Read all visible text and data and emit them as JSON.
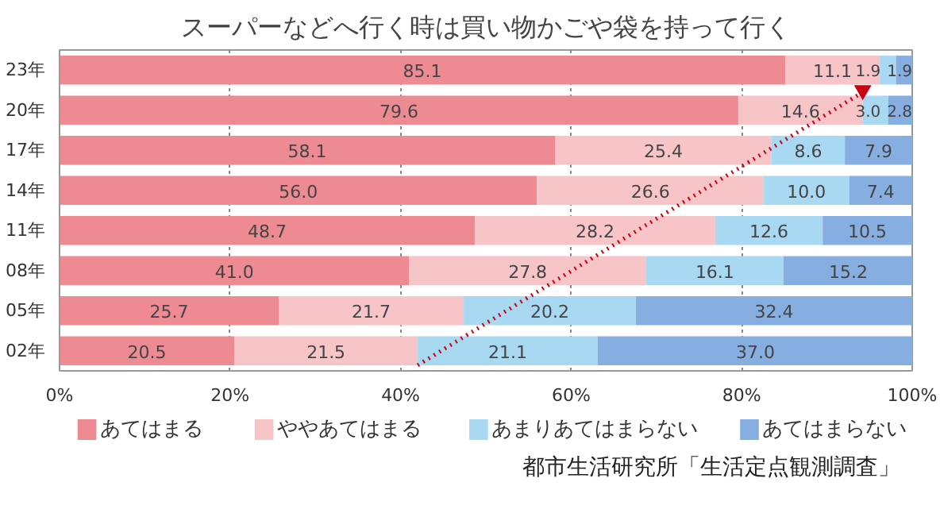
{
  "chart_data": {
    "type": "bar",
    "orientation": "horizontal",
    "stacked": true,
    "title": "スーパーなどへ行く時は買い物かごや袋を持って行く",
    "categories": [
      "23年",
      "20年",
      "17年",
      "14年",
      "11年",
      "08年",
      "05年",
      "02年"
    ],
    "series": [
      {
        "name": "あてはまる",
        "color": "#ee8a92",
        "values": [
          85.1,
          79.6,
          58.1,
          56.0,
          48.7,
          41.0,
          25.7,
          20.5
        ],
        "value_labels": [
          "85.1",
          "79.6",
          "58.1",
          "56.0",
          "48.7",
          "41.0",
          "25.7",
          "20.5"
        ]
      },
      {
        "name": "ややあてはまる",
        "color": "#f7c4c8",
        "values": [
          11.1,
          14.6,
          25.4,
          26.6,
          28.2,
          27.8,
          21.7,
          21.5
        ],
        "value_labels": [
          "11.1",
          "14.6",
          "25.4",
          "26.6",
          "28.2",
          "27.8",
          "21.7",
          "21.5"
        ]
      },
      {
        "name": "あまりあてはまらない",
        "color": "#a8d8f2",
        "values": [
          1.9,
          3.0,
          8.6,
          10.0,
          12.6,
          16.1,
          20.2,
          21.1
        ],
        "value_labels": [
          "1.9",
          "3.0",
          "8.6",
          "10.0",
          "12.6",
          "16.1",
          "20.2",
          "21.1"
        ]
      },
      {
        "name": "あてはまらない",
        "color": "#86aee0",
        "values": [
          1.9,
          2.8,
          7.9,
          7.4,
          10.5,
          15.2,
          32.4,
          37.0
        ],
        "value_labels": [
          "1.9",
          "2.8",
          "7.9",
          "7.4",
          "10.5",
          "15.2",
          "32.4",
          "37.0"
        ]
      }
    ],
    "xlim": [
      0,
      100
    ],
    "xticks": [
      {
        "value": 0,
        "label": "0%"
      },
      {
        "value": 20,
        "label": "20%"
      },
      {
        "value": 40,
        "label": "40%"
      },
      {
        "value": 60,
        "label": "60%"
      },
      {
        "value": 80,
        "label": "80%"
      },
      {
        "value": 100,
        "label": "100%"
      }
    ],
    "grid": "x",
    "legend": "bottom",
    "annotations": [
      "都市生活研究所「生活定点観測調査」"
    ]
  }
}
